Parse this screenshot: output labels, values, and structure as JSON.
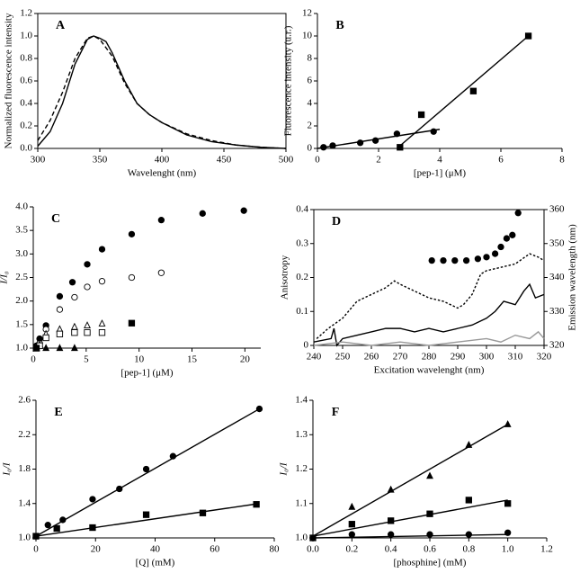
{
  "chart_data": [
    {
      "type": "line",
      "title": "A",
      "frame": "box",
      "xlabel": "Wavelenght (nm)",
      "ylabel": "Normalized fluorescence intensity",
      "xlim": [
        300,
        500
      ],
      "xticks": [
        300,
        350,
        400,
        450,
        500
      ],
      "ylim": [
        0,
        1.2
      ],
      "yticks": [
        {
          "value": 0,
          "label": "0.0"
        },
        0.2,
        0.4,
        0.6,
        0.8,
        {
          "value": 1,
          "label": "1.0"
        },
        1.2
      ],
      "series": [
        {
          "color": "#000000",
          "line": "solid",
          "marker": "none",
          "x": [
            300,
            310,
            320,
            330,
            340,
            345,
            350,
            355,
            360,
            370,
            380,
            390,
            400,
            420,
            440,
            460,
            480,
            500
          ],
          "values": [
            0.02,
            0.15,
            0.4,
            0.75,
            0.97,
            1.0,
            0.98,
            0.95,
            0.85,
            0.6,
            0.4,
            0.3,
            0.23,
            0.12,
            0.06,
            0.03,
            0.01,
            0
          ]
        },
        {
          "color": "#000000",
          "line": "dashed",
          "marker": "none",
          "x": [
            300,
            310,
            320,
            330,
            340,
            345,
            350,
            360,
            370,
            380,
            390,
            400,
            420,
            440,
            460,
            480,
            500
          ],
          "values": [
            0.07,
            0.25,
            0.5,
            0.8,
            0.98,
            1.0,
            0.97,
            0.82,
            0.58,
            0.4,
            0.3,
            0.23,
            0.13,
            0.07,
            0.03,
            0.01,
            0
          ]
        }
      ]
    },
    {
      "type": "scatter",
      "title": "B",
      "frame": "open",
      "xlabel": "[pep-1] (μM)",
      "ylabel": "Fluorescence intensity (u.r.)",
      "xlim": [
        0,
        8
      ],
      "xticks": [
        0,
        2,
        4,
        6,
        8
      ],
      "ylim": [
        0,
        12
      ],
      "yticks": [
        0,
        2,
        4,
        6,
        8,
        10,
        12
      ],
      "series": [
        {
          "color": "#000000",
          "line": "none",
          "marker": "circle",
          "filled": true,
          "x": [
            0.2,
            0.5,
            1.4,
            1.9,
            2.6,
            3.8
          ],
          "values": [
            0.1,
            0.25,
            0.5,
            0.7,
            1.3,
            1.5
          ]
        },
        {
          "color": "#000000",
          "line": "none",
          "marker": "square",
          "filled": true,
          "x": [
            2.7,
            3.4,
            5.1,
            6.9
          ],
          "values": [
            0.1,
            3.0,
            5.1,
            10.0
          ]
        },
        {
          "color": "#000000",
          "line": "solid",
          "marker": "none",
          "x": [
            0,
            4
          ],
          "values": [
            0,
            1.7
          ]
        },
        {
          "color": "#000000",
          "line": "solid",
          "marker": "none",
          "x": [
            2.6,
            6.9
          ],
          "values": [
            0,
            10
          ]
        }
      ]
    },
    {
      "type": "scatter",
      "title": "C",
      "frame": "open",
      "xlabel": "[pep-1] (μM)",
      "ylabel": "I/I₀",
      "xlim": [
        0,
        21.5
      ],
      "xticks": [
        0,
        5,
        10,
        15,
        20
      ],
      "ylim": [
        1,
        4
      ],
      "yticks": [
        {
          "value": 1,
          "label": "1.0"
        },
        1.5,
        {
          "value": 2,
          "label": "2.0"
        },
        2.5,
        {
          "value": 3,
          "label": "3.0"
        },
        3.5,
        {
          "value": 4,
          "label": "4.0"
        }
      ],
      "series": [
        {
          "color": "#000000",
          "line": "none",
          "marker": "circle",
          "filled": true,
          "x": [
            0.3,
            0.6,
            1.2,
            2.5,
            3.7,
            5.1,
            6.5,
            9.3,
            12.1,
            16,
            19.9
          ],
          "values": [
            1.05,
            1.2,
            1.48,
            2.1,
            2.4,
            2.78,
            3.1,
            3.42,
            3.72,
            3.86,
            3.92
          ]
        },
        {
          "color": "#000000",
          "line": "none",
          "marker": "circle",
          "filled": false,
          "x": [
            0.3,
            0.6,
            1.2,
            2.5,
            3.9,
            5.1,
            6.5,
            9.3,
            12.1
          ],
          "values": [
            1.02,
            1.1,
            1.4,
            1.82,
            2.08,
            2.3,
            2.42,
            2.5,
            2.6
          ]
        },
        {
          "color": "#000000",
          "line": "none",
          "marker": "triangle",
          "filled": false,
          "x": [
            0.3,
            0.6,
            1.2,
            2.5,
            3.9,
            5.1,
            6.5
          ],
          "values": [
            1.0,
            1.08,
            1.3,
            1.4,
            1.45,
            1.48,
            1.52
          ]
        },
        {
          "color": "#000000",
          "line": "none",
          "marker": "square",
          "filled": false,
          "x": [
            0.3,
            0.6,
            1.2,
            2.5,
            3.9,
            5.1,
            6.5
          ],
          "values": [
            1.0,
            1.05,
            1.22,
            1.3,
            1.33,
            1.33,
            1.33
          ]
        },
        {
          "color": "#000000",
          "line": "none",
          "marker": "triangle",
          "filled": true,
          "x": [
            1.2,
            2.5,
            3.9
          ],
          "values": [
            1.0,
            1.0,
            1.0
          ]
        },
        {
          "color": "#000000",
          "line": "none",
          "marker": "square",
          "filled": true,
          "x": [
            0.3,
            9.3
          ],
          "values": [
            1.0,
            1.53
          ]
        }
      ]
    },
    {
      "type": "line",
      "title": "D",
      "frame": "box",
      "xlabel": "Excitation wavelenght (nm)",
      "ylabel": "Anisotropy",
      "y2label": "Emission wavelength (nm)",
      "xlim": [
        240,
        320
      ],
      "xticks": [
        240,
        250,
        260,
        270,
        280,
        290,
        300,
        310,
        320
      ],
      "ylim": [
        0,
        0.4
      ],
      "yticks": [
        0,
        0.1,
        0.2,
        0.3,
        0.4
      ],
      "y2lim": [
        320,
        360
      ],
      "y2ticks": [
        320,
        330,
        340,
        350,
        360
      ],
      "series": [
        {
          "color": "#000000",
          "line": "dotted",
          "marker": "none",
          "x": [
            241,
            245,
            250,
            255,
            260,
            265,
            268,
            270,
            275,
            280,
            285,
            290,
            292,
            295,
            298,
            300,
            305,
            310,
            315,
            318,
            320
          ],
          "values": [
            0.02,
            0.05,
            0.08,
            0.13,
            0.15,
            0.17,
            0.19,
            0.18,
            0.16,
            0.14,
            0.13,
            0.11,
            0.12,
            0.15,
            0.21,
            0.22,
            0.23,
            0.24,
            0.27,
            0.26,
            0.25
          ]
        },
        {
          "color": "#000000",
          "line": "solid",
          "marker": "none",
          "x": [
            240,
            246,
            247,
            248,
            250,
            255,
            260,
            265,
            270,
            275,
            280,
            285,
            290,
            295,
            300,
            303,
            306,
            310,
            313,
            315,
            317,
            320
          ],
          "values": [
            0.01,
            0.02,
            0.05,
            0.0,
            0.02,
            0.03,
            0.04,
            0.05,
            0.05,
            0.04,
            0.05,
            0.04,
            0.05,
            0.06,
            0.08,
            0.1,
            0.13,
            0.12,
            0.16,
            0.18,
            0.14,
            0.15
          ]
        },
        {
          "color": "#999999",
          "line": "solid",
          "marker": "none",
          "x": [
            240,
            250,
            260,
            270,
            280,
            290,
            300,
            305,
            310,
            315,
            318,
            320
          ],
          "values": [
            0.0,
            0.01,
            0.0,
            0.01,
            0.0,
            0.01,
            0.02,
            0.01,
            0.03,
            0.02,
            0.04,
            0.02
          ]
        },
        {
          "color": "#000000",
          "line": "none",
          "marker": "circle",
          "filled": true,
          "axis": "y2",
          "x": [
            281,
            285,
            289,
            293,
            297,
            300,
            303,
            305,
            307,
            309,
            311
          ],
          "values": [
            345,
            345,
            345,
            345,
            345.5,
            346,
            347,
            349,
            351.5,
            352.5,
            359
          ]
        }
      ]
    },
    {
      "type": "scatter",
      "title": "E",
      "frame": "open",
      "xlabel": "[Q] (mM)",
      "ylabel": "I₀/I",
      "xlim": [
        0,
        80
      ],
      "xticks": [
        0,
        20,
        40,
        60,
        80
      ],
      "ylim": [
        1,
        2.6
      ],
      "yticks": [
        {
          "value": 1,
          "label": "1.0"
        },
        1.4,
        1.8,
        2.2,
        2.6
      ],
      "series": [
        {
          "color": "#000000",
          "line": "none",
          "marker": "circle",
          "filled": true,
          "x": [
            0,
            4,
            9,
            19,
            28,
            37,
            46,
            75
          ],
          "values": [
            1.02,
            1.15,
            1.21,
            1.45,
            1.57,
            1.8,
            1.95,
            2.5
          ]
        },
        {
          "color": "#000000",
          "line": "none",
          "marker": "square",
          "filled": true,
          "x": [
            0,
            7,
            19,
            37,
            56,
            74
          ],
          "values": [
            1.02,
            1.11,
            1.12,
            1.27,
            1.29,
            1.39
          ]
        },
        {
          "color": "#000000",
          "line": "solid",
          "marker": "none",
          "x": [
            0,
            75
          ],
          "values": [
            1.02,
            2.5
          ]
        },
        {
          "color": "#000000",
          "line": "solid",
          "marker": "none",
          "x": [
            0,
            75
          ],
          "values": [
            1.02,
            1.4
          ]
        }
      ]
    },
    {
      "type": "scatter",
      "title": "F",
      "frame": "open",
      "xlabel": "[phosphine] (mM)",
      "ylabel": "I₀/I",
      "xlim": [
        0,
        1.2
      ],
      "xticks": [
        {
          "value": 0,
          "label": "0.0"
        },
        0.2,
        0.4,
        0.6,
        0.8,
        {
          "value": 1,
          "label": "1.0"
        },
        1.2
      ],
      "ylim": [
        1,
        1.4
      ],
      "yticks": [
        {
          "value": 1,
          "label": "1.0"
        },
        1.1,
        1.2,
        1.3,
        1.4
      ],
      "series": [
        {
          "color": "#000000",
          "line": "none",
          "marker": "triangle",
          "filled": true,
          "x": [
            0.2,
            0.4,
            0.6,
            0.8,
            1.0
          ],
          "values": [
            1.09,
            1.14,
            1.18,
            1.27,
            1.33
          ]
        },
        {
          "color": "#000000",
          "line": "none",
          "marker": "square",
          "filled": true,
          "x": [
            0,
            0.2,
            0.4,
            0.6,
            0.8,
            1.0
          ],
          "values": [
            1.0,
            1.04,
            1.05,
            1.07,
            1.11,
            1.1
          ]
        },
        {
          "color": "#000000",
          "line": "none",
          "marker": "circle",
          "filled": true,
          "x": [
            0,
            0.2,
            0.4,
            0.6,
            0.8,
            1.0
          ],
          "values": [
            1.0,
            1.01,
            1.01,
            1.01,
            1.01,
            1.015
          ]
        },
        {
          "color": "#000000",
          "line": "solid",
          "marker": "none",
          "x": [
            0,
            1
          ],
          "values": [
            1.005,
            1.33
          ]
        },
        {
          "color": "#000000",
          "line": "solid",
          "marker": "none",
          "x": [
            0,
            1
          ],
          "values": [
            1.005,
            1.11
          ]
        },
        {
          "color": "#000000",
          "line": "solid",
          "marker": "none",
          "x": [
            0,
            1
          ],
          "values": [
            1.0,
            1.01
          ]
        }
      ]
    }
  ]
}
